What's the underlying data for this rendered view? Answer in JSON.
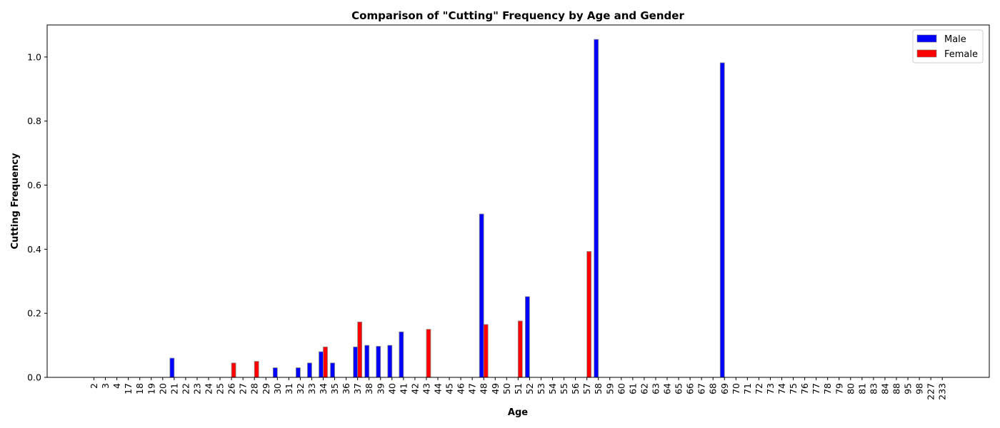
{
  "chart_data": {
    "type": "bar",
    "title": "Comparison of \"Cutting\" Frequency by Age and Gender",
    "xlabel": "Age",
    "ylabel": "Cutting Frequency",
    "ylim": [
      0,
      1.1
    ],
    "yticks": [
      0.0,
      0.2,
      0.4,
      0.6,
      0.8,
      1.0
    ],
    "ytick_labels": [
      "0.0",
      "0.2",
      "0.4",
      "0.6",
      "0.8",
      "1.0"
    ],
    "grid": false,
    "legend_position": "top-right",
    "categories": [
      "2",
      "3",
      "4",
      "17",
      "18",
      "19",
      "20",
      "21",
      "22",
      "23",
      "24",
      "25",
      "26",
      "27",
      "28",
      "29",
      "30",
      "31",
      "32",
      "33",
      "34",
      "35",
      "36",
      "37",
      "38",
      "39",
      "40",
      "41",
      "42",
      "43",
      "44",
      "45",
      "46",
      "47",
      "48",
      "49",
      "50",
      "51",
      "52",
      "53",
      "54",
      "55",
      "56",
      "57",
      "58",
      "59",
      "60",
      "61",
      "62",
      "63",
      "64",
      "65",
      "66",
      "67",
      "68",
      "69",
      "70",
      "71",
      "72",
      "73",
      "74",
      "75",
      "76",
      "77",
      "78",
      "79",
      "80",
      "81",
      "83",
      "84",
      "88",
      "95",
      "98",
      "227",
      "233"
    ],
    "series": [
      {
        "name": "Male",
        "color": "#0000ff",
        "values": [
          0,
          0,
          0,
          0,
          0,
          0,
          0,
          0.06,
          0,
          0,
          0,
          0,
          0,
          0,
          0,
          0,
          0.03,
          0,
          0.03,
          0.045,
          0.08,
          0.045,
          0,
          0.095,
          0.1,
          0.097,
          0.1,
          0.142,
          0,
          0,
          0,
          0,
          0,
          0,
          0.51,
          0,
          0,
          0,
          0.252,
          0,
          0,
          0,
          0,
          0,
          1.055,
          0,
          0,
          0,
          0,
          0,
          0,
          0,
          0,
          0,
          0,
          0.982,
          0,
          0,
          0,
          0,
          0,
          0,
          0,
          0,
          0,
          0,
          0,
          0,
          0,
          0,
          0,
          0,
          0,
          0,
          0
        ]
      },
      {
        "name": "Female",
        "color": "#ff0000",
        "values": [
          0,
          0,
          0,
          0,
          0,
          0,
          0,
          0,
          0,
          0,
          0,
          0,
          0.045,
          0,
          0.05,
          0,
          0,
          0,
          0,
          0,
          0.095,
          0,
          0,
          0.173,
          0,
          0,
          0,
          0,
          0,
          0.15,
          0,
          0,
          0,
          0,
          0.165,
          0,
          0,
          0.176,
          0,
          0,
          0,
          0,
          0,
          0.393,
          0,
          0,
          0,
          0,
          0,
          0,
          0,
          0,
          0,
          0,
          0,
          0,
          0,
          0,
          0,
          0,
          0,
          0,
          0,
          0,
          0,
          0,
          0,
          0,
          0,
          0,
          0,
          0,
          0,
          0,
          0
        ]
      }
    ]
  }
}
